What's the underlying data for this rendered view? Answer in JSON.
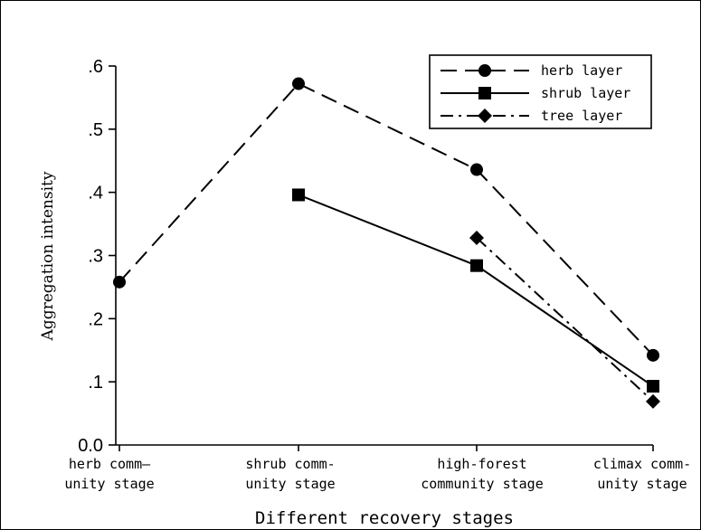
{
  "chart_data": {
    "type": "line",
    "categories": [
      [
        "herb comm—",
        "unity stage"
      ],
      [
        "shrub comm-",
        "unity stage"
      ],
      [
        "high-forest",
        "community stage"
      ],
      [
        "climax comm-",
        "unity stage"
      ]
    ],
    "xlabel": "Different recovery stages",
    "ylabel": "Aggregation intensity",
    "ylim": [
      0,
      0.6
    ],
    "yticks": [
      ".6",
      ".5",
      ".4",
      ".3",
      ".2",
      ".1",
      "0.0"
    ],
    "ytick_values": [
      0.6,
      0.5,
      0.4,
      0.3,
      0.2,
      0.1,
      0.0
    ],
    "grid": false,
    "legend_position": "top-right",
    "series": [
      {
        "name": "herb layer",
        "values": [
          0.258,
          0.572,
          0.436,
          0.142
        ],
        "dash": "dashed",
        "marker": "circle"
      },
      {
        "name": "shrub layer",
        "values": [
          null,
          0.396,
          0.284,
          0.093
        ],
        "dash": "solid",
        "marker": "square"
      },
      {
        "name": "tree layer",
        "values": [
          null,
          null,
          0.328,
          0.069
        ],
        "dash": "dashdot",
        "marker": "diamond"
      }
    ]
  }
}
